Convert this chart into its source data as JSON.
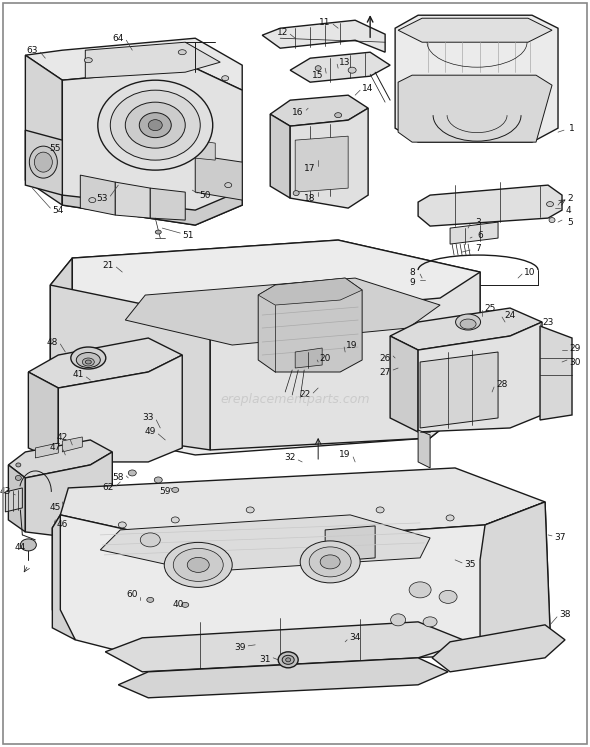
{
  "bg_color": "#ffffff",
  "line_color": "#1a1a1a",
  "label_color": "#111111",
  "watermark": "ereplacementparts.com",
  "lw_main": 1.0,
  "lw_thin": 0.5,
  "lw_med": 0.7
}
